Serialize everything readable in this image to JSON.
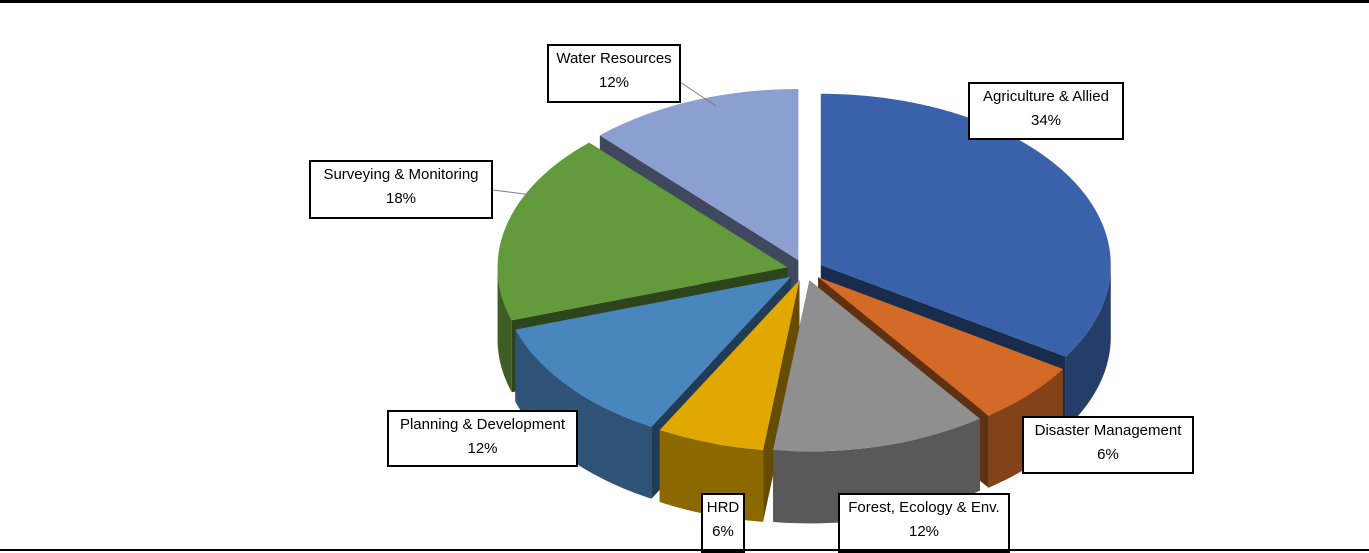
{
  "chart_data": {
    "type": "pie",
    "title": "",
    "series": [
      {
        "values": [
          34,
          6,
          12,
          6,
          12,
          18,
          12
        ],
        "categories": [
          "Agriculture & Allied",
          "Disaster Management",
          "Forest, Ecology & Env.",
          "HRD",
          "Planning & Development",
          "Surveying & Monitoring",
          "Water Resources"
        ]
      }
    ],
    "labels": [
      {
        "name": "Agriculture & Allied",
        "pct": "34%"
      },
      {
        "name": "Disaster Management",
        "pct": "6%"
      },
      {
        "name": "Forest, Ecology & Env.",
        "pct": "12%"
      },
      {
        "name": "HRD",
        "pct": "6%"
      },
      {
        "name": "Planning & Development",
        "pct": "12%"
      },
      {
        "name": "Surveying & Monitoring",
        "pct": "18%"
      },
      {
        "name": "Water Resources",
        "pct": "12%"
      }
    ],
    "colors": [
      "#3A62AA",
      "#D46A27",
      "#8F8F8F",
      "#E0A800",
      "#4A86BE",
      "#629A3C",
      "#8C9FD1"
    ],
    "style": "3d-exploded-pie"
  }
}
